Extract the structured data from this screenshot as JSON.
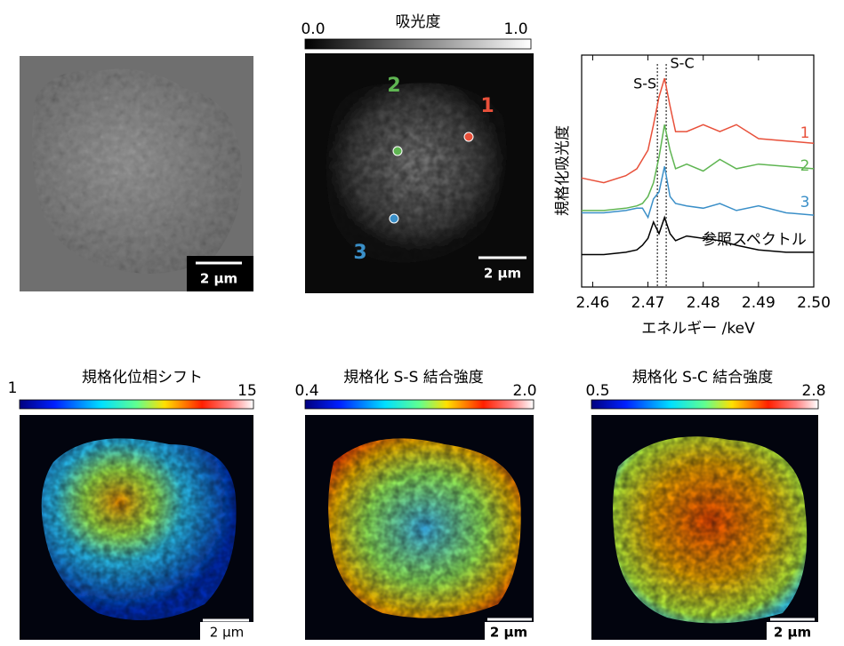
{
  "sem_image": {
    "scale_bar": "2 µm"
  },
  "absorbance_map": {
    "colorbar": {
      "min_label": "0.0",
      "title": "吸光度",
      "max_label": "1.0"
    },
    "points": [
      {
        "label": "1",
        "color": "#e8503a"
      },
      {
        "label": "2",
        "color": "#5fb552"
      },
      {
        "label": "3",
        "color": "#3a8fc8"
      }
    ],
    "scale_bar": "2 µm"
  },
  "maps": [
    {
      "colorbar": {
        "min_label": "1",
        "title": "規格化位相シフト",
        "max_label": "15"
      },
      "scale_bar": "2 µm"
    },
    {
      "colorbar": {
        "min_label": "0.4",
        "title": "規格化 S-S 結合強度",
        "max_label": "2.0"
      },
      "scale_bar": "2 µm"
    },
    {
      "colorbar": {
        "min_label": "0.5",
        "title": "規格化 S-C 結合強度",
        "max_label": "2.8"
      },
      "scale_bar": "2 µm"
    }
  ],
  "chart_data": {
    "type": "line",
    "x_label": "エネルギー /keV",
    "y_label": "規格化吸光度",
    "x": [
      2.458,
      2.462,
      2.466,
      2.468,
      2.469,
      2.47,
      2.471,
      2.472,
      2.473,
      2.474,
      2.475,
      2.477,
      2.48,
      2.483,
      2.486,
      2.49,
      2.495,
      2.5
    ],
    "series": [
      {
        "name": "1",
        "color": "#e8503a",
        "values": [
          4.7,
          4.5,
          4.8,
          5.1,
          5.5,
          5.9,
          7.0,
          8.2,
          9.0,
          7.8,
          6.7,
          6.7,
          7.0,
          6.7,
          7.0,
          6.4,
          6.3,
          6.2
        ]
      },
      {
        "name": "2",
        "color": "#5fb552",
        "values": [
          3.3,
          3.3,
          3.4,
          3.5,
          3.6,
          3.9,
          4.5,
          5.6,
          7.0,
          5.9,
          5.1,
          5.3,
          5.0,
          5.5,
          5.1,
          5.3,
          5.2,
          5.1
        ]
      },
      {
        "name": "3",
        "color": "#3a8fc8",
        "values": [
          3.2,
          3.2,
          3.3,
          3.4,
          3.4,
          3.0,
          3.8,
          4.1,
          5.2,
          3.9,
          3.6,
          3.5,
          3.4,
          3.6,
          3.3,
          3.5,
          3.2,
          3.1
        ]
      },
      {
        "name": "参照スペクトル",
        "color": "#000000",
        "values": [
          1.4,
          1.4,
          1.5,
          1.6,
          1.8,
          2.1,
          2.8,
          2.3,
          3.0,
          2.3,
          2.0,
          2.2,
          2.1,
          2.0,
          1.8,
          1.6,
          1.5,
          1.5
        ]
      }
    ],
    "markers": [
      {
        "label": "S-S",
        "value": 2.4717
      },
      {
        "label": "S-C",
        "value": 2.4733
      }
    ],
    "xlim": [
      2.458,
      2.5
    ],
    "xticks": [
      2.46,
      2.47,
      2.48,
      2.49,
      {
        "value": 2.5,
        "label": "2.50"
      }
    ],
    "ylim": [
      0,
      10
    ]
  }
}
